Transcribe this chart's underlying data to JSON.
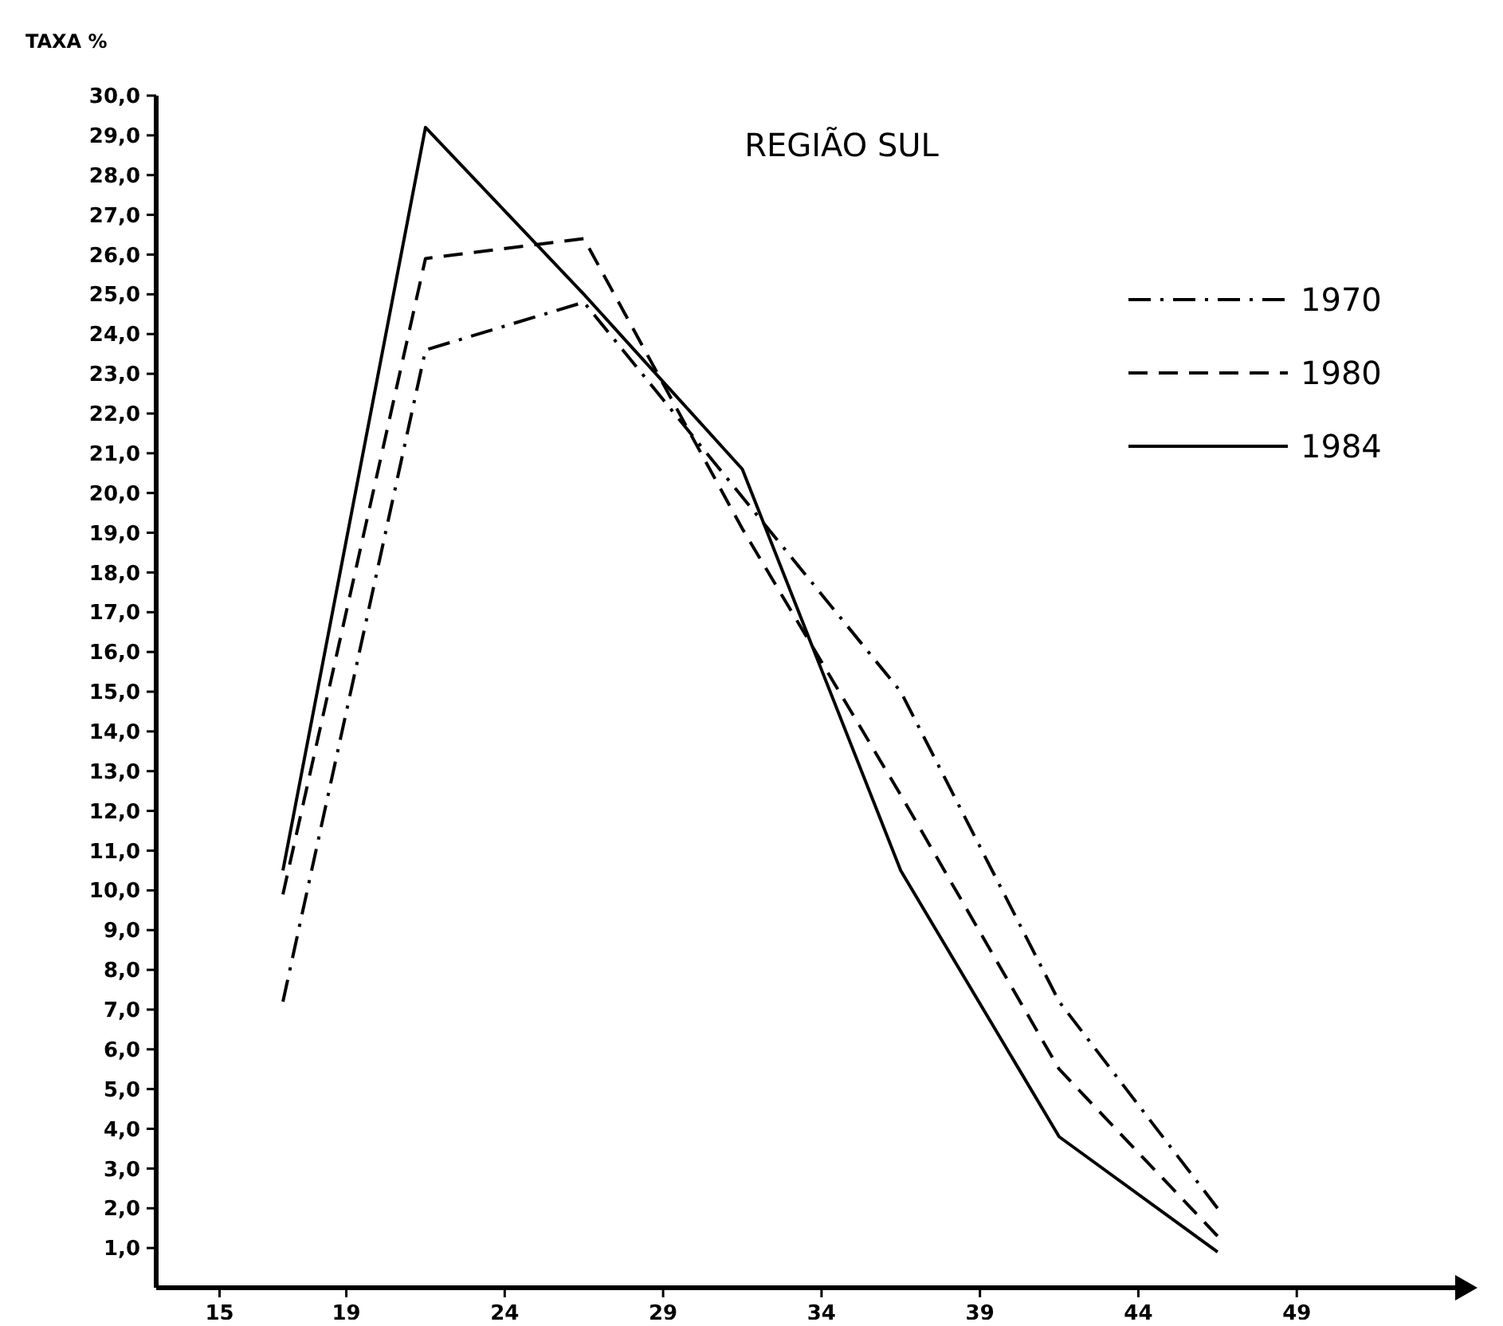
{
  "chart_data": {
    "type": "line",
    "title": "REGIÃO SUL",
    "ylabel": "TAXA %",
    "x": [
      17,
      21.5,
      26.5,
      31.5,
      36.5,
      41.5,
      46.5
    ],
    "xlim": [
      13,
      54
    ],
    "xticks": [
      15,
      19,
      24,
      29,
      34,
      39,
      44,
      49
    ],
    "ylim": [
      0,
      30
    ],
    "yticks": [
      {
        "value": 1,
        "label": "1,0"
      },
      {
        "value": 2,
        "label": "2,0"
      },
      {
        "value": 3,
        "label": "3,0"
      },
      {
        "value": 4,
        "label": "4,0"
      },
      {
        "value": 5,
        "label": "5,0"
      },
      {
        "value": 6,
        "label": "6,0"
      },
      {
        "value": 7,
        "label": "7,0"
      },
      {
        "value": 8,
        "label": "8,0"
      },
      {
        "value": 9,
        "label": "9,0"
      },
      {
        "value": 10,
        "label": "10,0"
      },
      {
        "value": 11,
        "label": "11,0"
      },
      {
        "value": 12,
        "label": "12,0"
      },
      {
        "value": 13,
        "label": "13,0"
      },
      {
        "value": 14,
        "label": "14,0"
      },
      {
        "value": 15,
        "label": "15,0"
      },
      {
        "value": 16,
        "label": "16,0"
      },
      {
        "value": 17,
        "label": "17,0"
      },
      {
        "value": 18,
        "label": "18,0"
      },
      {
        "value": 19,
        "label": "19,0"
      },
      {
        "value": 20,
        "label": "20,0"
      },
      {
        "value": 21,
        "label": "21,0"
      },
      {
        "value": 22,
        "label": "22,0"
      },
      {
        "value": 23,
        "label": "23,0"
      },
      {
        "value": 24,
        "label": "24,0"
      },
      {
        "value": 25,
        "label": "25,0"
      },
      {
        "value": 26,
        "label": "26,0"
      },
      {
        "value": 27,
        "label": "27,0"
      },
      {
        "value": 28,
        "label": "28,0"
      },
      {
        "value": 29,
        "label": "29,0"
      },
      {
        "value": 30,
        "label": "30,0"
      }
    ],
    "legend": "top right",
    "grid": false,
    "marker": "none",
    "series": [
      {
        "name": "1970",
        "color": "#000000",
        "line_style": "dashdot",
        "values": [
          7.2,
          23.6,
          24.8,
          19.9,
          15.0,
          7.2,
          2.0
        ]
      },
      {
        "name": "1980",
        "color": "#000000",
        "line_style": "dashed",
        "values": [
          9.9,
          25.9,
          26.4,
          19.1,
          12.4,
          5.5,
          1.3
        ]
      },
      {
        "name": "1984",
        "color": "#000000",
        "line_style": "solid",
        "values": [
          10.5,
          29.2,
          25.0,
          20.6,
          10.5,
          3.8,
          0.9
        ]
      }
    ]
  }
}
